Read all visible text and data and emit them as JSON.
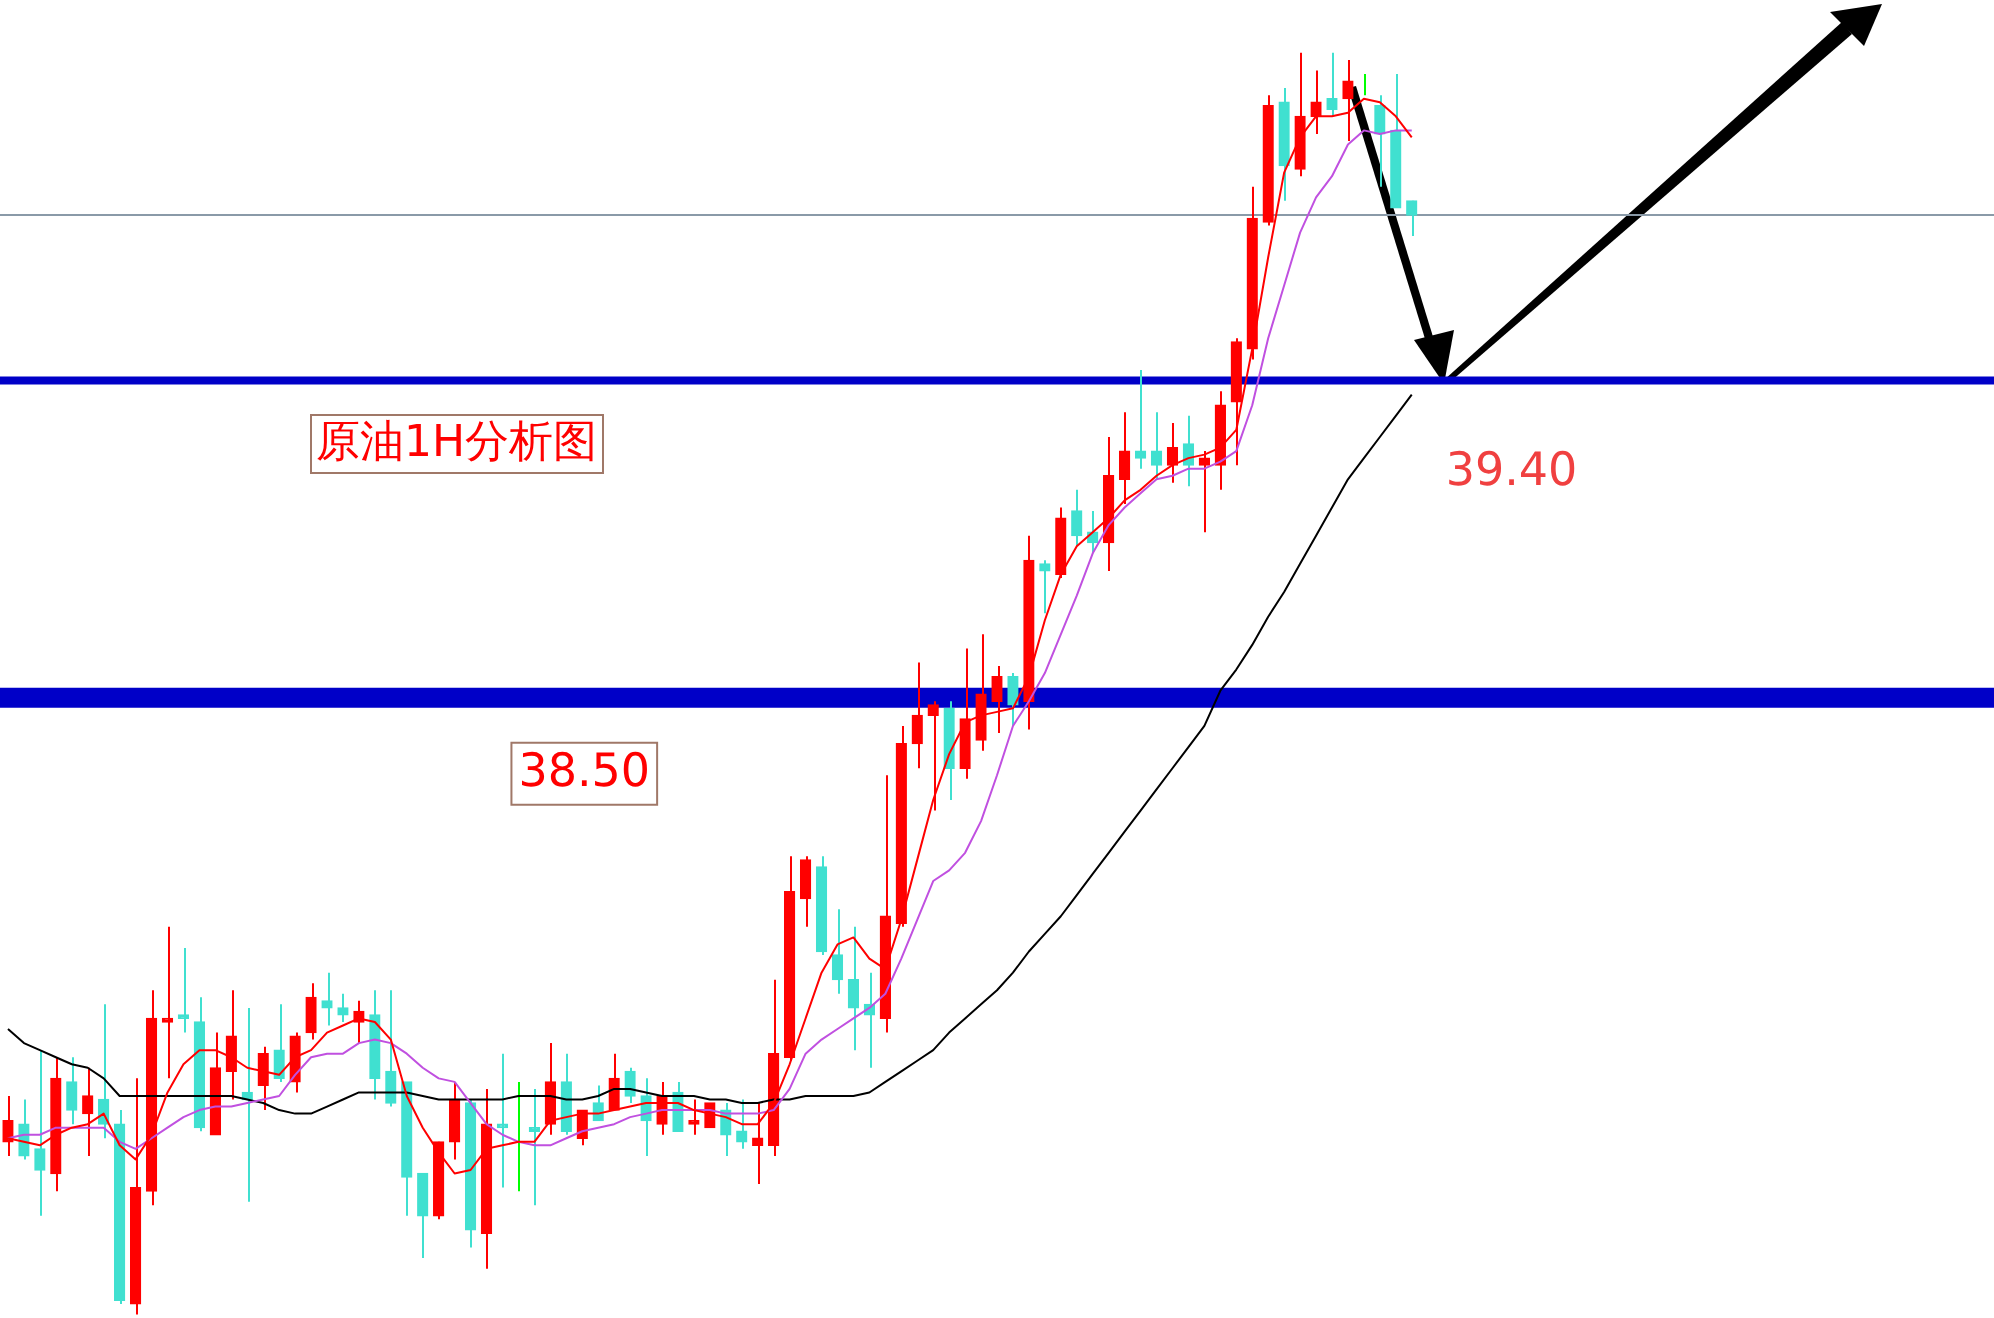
{
  "chart_data": {
    "type": "candlestick",
    "title": "原油1H分析图",
    "categories": [
      null,
      null,
      null,
      null,
      null,
      null,
      null,
      null,
      null,
      null,
      null,
      null,
      null,
      null,
      null,
      null,
      null,
      null,
      null,
      null,
      null,
      null,
      null,
      null,
      null,
      null,
      null,
      null,
      null,
      null,
      null,
      null,
      null,
      null,
      null,
      null,
      null,
      null,
      null,
      null,
      null,
      null,
      null,
      null,
      null,
      null,
      null,
      null,
      null,
      null,
      null,
      null,
      null,
      null,
      null,
      null,
      null,
      null,
      null,
      null,
      null,
      null,
      null,
      null,
      null,
      null,
      null,
      null,
      null,
      null,
      null,
      null,
      null,
      null,
      null,
      null,
      null,
      null,
      null,
      null,
      null,
      null,
      null,
      null,
      null,
      null,
      null,
      null,
      null,
      null,
      null,
      null,
      null,
      null,
      null,
      null,
      null,
      null,
      null,
      null,
      null,
      null,
      null,
      null,
      null,
      null,
      null,
      null,
      null,
      null,
      null,
      null,
      null,
      null,
      null,
      null,
      null,
      null,
      null,
      null,
      null,
      null,
      null,
      null,
      null
    ],
    "ohlc": [
      [
        37.24,
        37.37,
        37.2,
        37.3
      ],
      [
        37.29,
        37.36,
        37.19,
        37.2
      ],
      [
        37.22,
        37.5,
        37.03,
        37.16
      ],
      [
        37.15,
        37.48,
        37.1,
        37.42
      ],
      [
        37.41,
        37.48,
        37.29,
        37.33
      ],
      [
        37.32,
        37.45,
        37.2,
        37.37
      ],
      [
        37.36,
        37.63,
        37.25,
        37.29
      ],
      [
        37.29,
        37.33,
        36.78,
        36.79
      ],
      [
        36.78,
        37.42,
        36.75,
        37.11
      ],
      [
        37.1,
        37.67,
        37.06,
        37.59
      ],
      [
        37.58,
        37.85,
        37.42,
        37.59
      ],
      [
        37.6,
        37.79,
        37.55,
        37.59
      ],
      [
        37.58,
        37.65,
        37.27,
        37.28
      ],
      [
        37.26,
        37.55,
        37.26,
        37.45
      ],
      [
        37.44,
        37.67,
        37.36,
        37.54
      ],
      [
        37.38,
        37.62,
        37.07,
        37.36
      ],
      [
        37.4,
        37.51,
        37.33,
        37.49
      ],
      [
        37.5,
        37.63,
        37.41,
        37.42
      ],
      [
        37.41,
        37.55,
        37.38,
        37.54
      ],
      [
        37.55,
        37.69,
        37.53,
        37.65
      ],
      [
        37.64,
        37.72,
        37.57,
        37.62
      ],
      [
        37.62,
        37.66,
        37.58,
        37.6
      ],
      [
        37.58,
        37.64,
        37.52,
        37.61
      ],
      [
        37.6,
        37.67,
        37.36,
        37.42
      ],
      [
        37.44,
        37.67,
        37.34,
        37.35
      ],
      [
        37.41,
        37.41,
        37.03,
        37.14
      ],
      [
        37.15,
        37.15,
        36.91,
        37.03
      ],
      [
        37.03,
        37.24,
        37.02,
        37.24
      ],
      [
        37.24,
        37.41,
        37.19,
        37.36
      ],
      [
        37.35,
        37.36,
        36.94,
        36.99
      ],
      [
        36.98,
        37.39,
        36.88,
        37.29
      ],
      [
        37.29,
        37.49,
        37.11,
        37.28
      ],
      [
        37.28,
        37.41,
        37.1,
        37.28
      ],
      [
        37.28,
        37.39,
        37.06,
        37.27
      ],
      [
        37.29,
        37.52,
        37.26,
        37.41
      ],
      [
        37.41,
        37.49,
        37.26,
        37.27
      ],
      [
        37.25,
        37.33,
        37.23,
        37.33
      ],
      [
        37.35,
        37.4,
        37.3,
        37.3
      ],
      [
        37.33,
        37.49,
        37.33,
        37.42
      ],
      [
        37.44,
        37.45,
        37.35,
        37.37
      ],
      [
        37.37,
        37.42,
        37.2,
        37.3
      ],
      [
        37.29,
        37.41,
        37.26,
        37.37
      ],
      [
        37.38,
        37.41,
        37.27,
        37.27
      ],
      [
        37.29,
        37.36,
        37.26,
        37.3
      ],
      [
        37.28,
        37.35,
        37.28,
        37.35
      ],
      [
        37.33,
        37.35,
        37.2,
        37.26
      ],
      [
        37.27,
        37.36,
        37.22,
        37.24
      ],
      [
        37.23,
        37.35,
        37.12,
        37.25
      ],
      [
        37.23,
        37.7,
        37.2,
        37.49
      ],
      [
        37.48,
        38.05,
        37.47,
        37.95
      ],
      [
        37.93,
        38.05,
        37.85,
        38.04
      ],
      [
        38.02,
        38.05,
        37.77,
        37.78
      ],
      [
        37.77,
        37.9,
        37.66,
        37.7
      ],
      [
        37.7,
        37.85,
        37.5,
        37.62
      ],
      [
        37.63,
        37.72,
        37.45,
        37.6
      ],
      [
        37.59,
        38.28,
        37.55,
        37.88
      ],
      [
        37.86,
        38.42,
        37.85,
        38.37
      ],
      [
        38.37,
        38.6,
        38.3,
        38.45
      ],
      [
        38.45,
        38.49,
        38.18,
        38.48
      ],
      [
        38.47,
        38.49,
        38.21,
        38.3
      ],
      [
        38.3,
        38.64,
        38.27,
        38.44
      ],
      [
        38.38,
        38.68,
        38.35,
        38.51
      ],
      [
        38.49,
        38.59,
        38.4,
        38.56
      ],
      [
        38.56,
        38.57,
        38.42,
        38.48
      ],
      [
        38.49,
        38.96,
        38.41,
        38.89
      ],
      [
        38.88,
        38.89,
        38.74,
        38.86
      ],
      [
        38.85,
        39.04,
        38.84,
        39.01
      ],
      [
        39.03,
        39.09,
        38.93,
        38.96
      ],
      [
        38.97,
        39.03,
        38.91,
        38.94
      ],
      [
        38.94,
        39.24,
        38.86,
        39.13
      ],
      [
        39.12,
        39.31,
        39.05,
        39.2
      ],
      [
        39.2,
        39.43,
        39.15,
        39.18
      ],
      [
        39.2,
        39.31,
        39.12,
        39.16
      ],
      [
        39.16,
        39.28,
        39.11,
        39.21
      ],
      [
        39.22,
        39.3,
        39.1,
        39.16
      ],
      [
        39.16,
        39.2,
        38.97,
        39.18
      ],
      [
        39.16,
        39.37,
        39.09,
        39.33
      ],
      [
        39.34,
        39.52,
        39.16,
        39.51
      ],
      [
        39.49,
        39.95,
        39.46,
        39.86
      ],
      [
        39.85,
        40.21,
        39.84,
        40.18
      ],
      [
        40.19,
        40.23,
        39.91,
        40.01
      ],
      [
        40,
        40.33,
        39.98,
        40.15
      ],
      [
        40.15,
        40.28,
        40.1,
        40.19
      ],
      [
        40.2,
        40.33,
        40.15,
        40.17
      ],
      [
        40.2,
        40.31,
        40.08,
        40.25
      ],
      [
        40.24,
        40.27,
        40.21,
        40.24
      ],
      [
        40.18,
        40.21,
        39.95,
        40.1
      ],
      [
        40.11,
        40.27,
        39.89,
        39.89
      ],
      [
        39.91,
        39.91,
        39.81,
        39.87
      ],
      null,
      null,
      null,
      null,
      null,
      null,
      null,
      null,
      null,
      null,
      null,
      null,
      null,
      null,
      null,
      null,
      null,
      null,
      null,
      null,
      null,
      null,
      null,
      null,
      null,
      null,
      null,
      null,
      null,
      null,
      null,
      null,
      null,
      null,
      null,
      null
    ],
    "colors": [
      "#ff0000",
      "#40e0d0",
      "#40e0d0",
      "#ff0000",
      "#40e0d0",
      "#ff0000",
      "#40e0d0",
      "#40e0d0",
      "#ff0000",
      "#ff0000",
      "#ff0000",
      "#40e0d0",
      "#40e0d0",
      "#ff0000",
      "#ff0000",
      "#40e0d0",
      "#ff0000",
      "#40e0d0",
      "#ff0000",
      "#ff0000",
      "#40e0d0",
      "#40e0d0",
      "#ff0000",
      "#40e0d0",
      "#40e0d0",
      "#40e0d0",
      "#40e0d0",
      "#ff0000",
      "#ff0000",
      "#40e0d0",
      "#ff0000",
      "#40e0d0",
      "#00ff00",
      "#40e0d0",
      "#ff0000",
      "#40e0d0",
      "#ff0000",
      "#40e0d0",
      "#ff0000",
      "#40e0d0",
      "#40e0d0",
      "#ff0000",
      "#40e0d0",
      "#ff0000",
      "#ff0000",
      "#40e0d0",
      "#40e0d0",
      "#ff0000",
      "#ff0000",
      "#ff0000",
      "#ff0000",
      "#40e0d0",
      "#40e0d0",
      "#40e0d0",
      "#40e0d0",
      "#ff0000",
      "#ff0000",
      "#ff0000",
      "#ff0000",
      "#40e0d0",
      "#ff0000",
      "#ff0000",
      "#ff0000",
      "#40e0d0",
      "#ff0000",
      "#40e0d0",
      "#ff0000",
      "#40e0d0",
      "#40e0d0",
      "#ff0000",
      "#ff0000",
      "#40e0d0",
      "#40e0d0",
      "#ff0000",
      "#40e0d0",
      "#ff0000",
      "#ff0000",
      "#ff0000",
      "#ff0000",
      "#ff0000",
      "#40e0d0",
      "#ff0000",
      "#ff0000",
      "#40e0d0",
      "#ff0000",
      "#00ff00",
      "#40e0d0",
      "#40e0d0",
      "#40e0d0",
      null,
      null,
      null,
      null,
      null,
      null,
      null,
      null,
      null,
      null,
      null,
      null,
      null,
      null,
      null,
      null,
      null,
      null,
      null,
      null,
      null,
      null,
      null,
      null,
      null,
      null,
      null,
      null,
      null,
      null,
      null,
      null,
      null,
      null,
      null,
      null
    ],
    "series": [
      {
        "type": "line",
        "color": "#ff0000",
        "values": [
          37.25,
          37.24,
          37.23,
          37.26,
          37.28,
          37.29,
          37.32,
          37.23,
          37.19,
          37.26,
          37.38,
          37.46,
          37.5,
          37.5,
          37.48,
          37.45,
          37.44,
          37.43,
          37.48,
          37.5,
          37.55,
          37.57,
          37.59,
          37.58,
          37.53,
          37.37,
          37.28,
          37.21,
          37.15,
          37.16,
          37.22,
          37.23,
          37.24,
          37.24,
          37.3,
          37.31,
          37.32,
          37.32,
          37.33,
          37.34,
          37.35,
          37.35,
          37.35,
          37.33,
          37.32,
          37.31,
          37.29,
          37.29,
          37.35,
          37.46,
          37.59,
          37.72,
          37.8,
          37.82,
          37.76,
          37.73,
          37.87,
          38.04,
          38.21,
          38.34,
          38.43,
          38.45,
          38.46,
          38.47,
          38.56,
          38.72,
          38.85,
          38.93,
          38.97,
          39.01,
          39.06,
          39.09,
          39.13,
          39.16,
          39.18,
          39.19,
          39.21,
          39.26,
          39.49,
          39.75,
          39.99,
          40.09,
          40.15,
          40.15,
          40.16,
          40.2,
          40.19,
          40.15,
          40.09,
          null,
          null,
          null,
          null,
          null,
          null,
          null,
          null,
          null,
          null,
          null,
          null,
          null,
          null,
          null,
          null,
          null,
          null,
          null,
          null,
          null,
          null,
          null,
          null,
          null,
          null,
          null,
          null,
          null,
          null,
          null,
          null,
          null,
          null,
          null,
          null
        ]
      },
      {
        "type": "line",
        "color": "#c050e0",
        "values": [
          37.25,
          37.26,
          37.26,
          37.28,
          37.28,
          37.28,
          37.28,
          37.24,
          37.22,
          37.25,
          37.28,
          37.31,
          37.33,
          37.34,
          37.34,
          37.35,
          37.36,
          37.37,
          37.43,
          37.48,
          37.49,
          37.49,
          37.52,
          37.53,
          37.52,
          37.49,
          37.45,
          37.42,
          37.41,
          37.35,
          37.29,
          37.26,
          37.24,
          37.23,
          37.23,
          37.25,
          37.27,
          37.28,
          37.29,
          37.31,
          37.32,
          37.33,
          37.33,
          37.33,
          37.33,
          37.32,
          37.32,
          37.32,
          37.33,
          37.39,
          37.49,
          37.53,
          37.56,
          37.59,
          37.62,
          37.66,
          37.76,
          37.87,
          37.98,
          38.01,
          38.06,
          38.15,
          38.28,
          38.42,
          38.49,
          38.57,
          38.68,
          38.79,
          38.91,
          38.99,
          39.04,
          39.08,
          39.12,
          39.13,
          39.15,
          39.15,
          39.17,
          39.2,
          39.33,
          39.52,
          39.67,
          39.82,
          39.92,
          39.98,
          40.07,
          40.11,
          40.1,
          40.11,
          40.11,
          null,
          null,
          null,
          null,
          null,
          null,
          null,
          null,
          null,
          null,
          null,
          null,
          null,
          null,
          null,
          null,
          null,
          null,
          null,
          null,
          null,
          null,
          null,
          null,
          null,
          null,
          null,
          null,
          null,
          null,
          null,
          null,
          null,
          null,
          null,
          null
        ]
      },
      {
        "type": "line",
        "color": "#000000",
        "values": [
          37.56,
          37.52,
          37.5,
          37.48,
          37.46,
          37.45,
          37.42,
          37.37,
          37.37,
          37.37,
          37.37,
          37.37,
          37.37,
          37.37,
          37.37,
          37.36,
          37.35,
          37.33,
          37.32,
          37.32,
          37.34,
          37.36,
          37.38,
          37.38,
          37.38,
          37.38,
          37.37,
          37.36,
          37.36,
          37.36,
          37.36,
          37.36,
          37.37,
          37.37,
          37.37,
          37.36,
          37.36,
          37.37,
          37.39,
          37.39,
          37.38,
          37.37,
          37.37,
          37.37,
          37.36,
          37.36,
          37.35,
          37.35,
          37.36,
          37.36,
          37.37,
          37.37,
          37.37,
          37.37,
          37.38,
          37.41,
          37.44,
          37.47,
          37.5,
          37.55,
          37.59,
          37.63,
          37.67,
          37.72,
          37.78,
          37.83,
          37.88,
          37.94,
          38,
          38.06,
          38.12,
          38.18,
          38.24,
          38.3,
          38.36,
          38.42,
          38.52,
          38.58,
          38.65,
          38.73,
          38.8,
          38.88,
          38.96,
          39.04,
          39.12,
          39.18,
          39.24,
          39.3,
          39.36,
          null,
          null,
          null,
          null,
          null,
          null,
          null,
          null,
          null,
          null,
          null,
          null,
          null,
          null,
          null,
          null,
          null,
          null,
          null,
          null,
          null,
          null,
          null,
          null,
          null,
          null,
          null,
          null,
          null,
          null,
          null,
          null,
          null,
          null,
          null,
          null
        ]
      }
    ],
    "ylim": [
      36.74,
      40.48
    ],
    "ref_lines": [
      {
        "axis": "y",
        "value": 38.5,
        "label": "38.50",
        "color": "#0000c8"
      },
      {
        "axis": "y",
        "value": 39.4,
        "label": "39.40",
        "color": "#0000c8"
      },
      {
        "axis": "y",
        "value": 39.87,
        "color": "#8a9aa8"
      }
    ],
    "tick_labels": false,
    "legend": false
  }
}
